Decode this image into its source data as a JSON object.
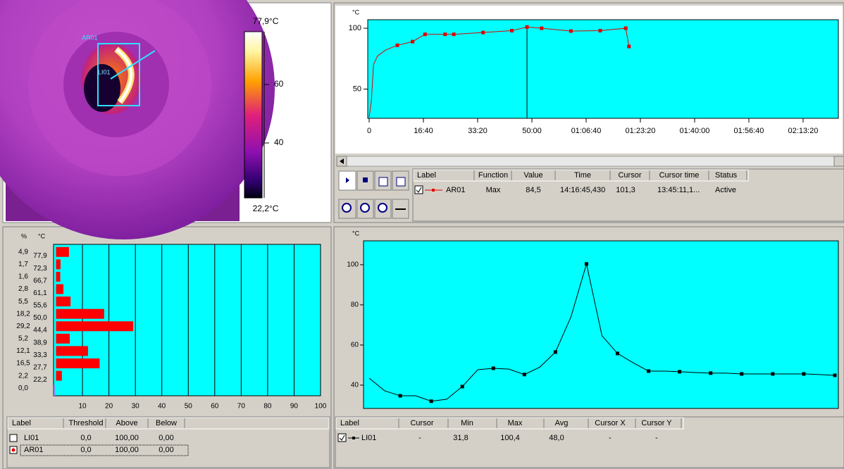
{
  "image_panel": {
    "roi_labels": [
      "AR01",
      "LI01"
    ],
    "scale_max": "77,9°C",
    "scale_min": "22,2°C",
    "scale_ticks": [
      "60",
      "40"
    ]
  },
  "time_chart": {
    "type": "line",
    "y_unit": "°C",
    "xlim": [
      0,
      8650
    ],
    "ylim": [
      26,
      107
    ],
    "yticks": [
      50,
      100
    ],
    "xticks": [
      0,
      {
        "value": 1000,
        "label": "16:40"
      },
      {
        "value": 2000,
        "label": "33:20"
      },
      {
        "value": 3000,
        "label": "50:00"
      },
      {
        "value": 4000,
        "label": "01:06:40"
      },
      {
        "value": 5000,
        "label": "01:23:20"
      },
      {
        "value": 6000,
        "label": "01:40:00"
      },
      {
        "value": 7000,
        "label": "01:56:40"
      },
      {
        "value": 8000,
        "label": "02:13:20"
      }
    ],
    "x": [
      0,
      40,
      80,
      150,
      300,
      520,
      800,
      1030,
      1400,
      1560,
      2100,
      2630,
      2910,
      3180,
      3720,
      4260,
      4730,
      4790
    ],
    "series": [
      {
        "color": "#e00000",
        "values": [
          27,
          40,
          70,
          77,
          82,
          86,
          89,
          95,
          95,
          95,
          96.5,
          98,
          101,
          100,
          97.7,
          98,
          100,
          85
        ]
      }
    ],
    "cursor_x": 2910
  },
  "time_table": {
    "headers": [
      "Label",
      "Function",
      "Value",
      "Time",
      "Cursor",
      "Cursor time",
      "Status"
    ],
    "rows": [
      [
        "AR01",
        "Max",
        "84,5",
        "14:16:45,430",
        "101,3",
        "13:45:11,1...",
        "Active"
      ]
    ]
  },
  "histogram": {
    "type": "bar",
    "y_units": [
      "%",
      "°C"
    ],
    "values": [
      4.9,
      1.7,
      1.6,
      2.8,
      5.5,
      18.2,
      29.2,
      5.2,
      12.1,
      16.5,
      2.2,
      0.0
    ],
    "value_labels": [
      "4,9",
      "1,7",
      "1,6",
      "2,8",
      "5,5",
      "18,2",
      "29,2",
      "5,2",
      "12,1",
      "16,5",
      "2,2",
      "0,0"
    ],
    "edge_labels": [
      "77,9",
      "72,3",
      "66,7",
      "61,1",
      "55,6",
      "50,0",
      "44,4",
      "38,9",
      "33,3",
      "27,7",
      "22,2"
    ],
    "xlim": [
      0,
      100
    ],
    "xticks": [
      10,
      20,
      30,
      40,
      50,
      60,
      70,
      80,
      90,
      100
    ],
    "color": "#ff0000",
    "grid": true
  },
  "histogram_table": {
    "headers": [
      "Label",
      "Threshold",
      "Above",
      "Below"
    ],
    "rows": [
      [
        "LI01",
        "0,0",
        "100,00",
        "0,00"
      ],
      [
        "AR01",
        "0,0",
        "100,00",
        "0,00"
      ]
    ]
  },
  "profile_chart": {
    "type": "line",
    "y_unit": "°C",
    "ylim": [
      28.4,
      111.9
    ],
    "yticks": [
      40,
      60,
      80,
      100
    ],
    "series": [
      {
        "color": "#000000",
        "values": [
          43.5,
          37.2,
          34.7,
          34.7,
          32,
          33,
          39.3,
          47.7,
          48.4,
          48,
          45.3,
          49,
          56.5,
          74,
          100.4,
          64.6,
          55.8,
          51.2,
          47,
          47,
          46.7,
          46.3,
          46,
          46,
          45.6,
          45.6,
          45.6,
          45.6,
          45.6,
          45.3,
          44.9
        ]
      }
    ]
  },
  "profile_table": {
    "headers": [
      "Label",
      "Cursor",
      "Min",
      "Max",
      "Avg",
      "Cursor X",
      "Cursor Y"
    ],
    "rows": [
      [
        "LI01",
        "-",
        "31,8",
        "100,4",
        "48,0",
        "-",
        "-"
      ]
    ]
  }
}
